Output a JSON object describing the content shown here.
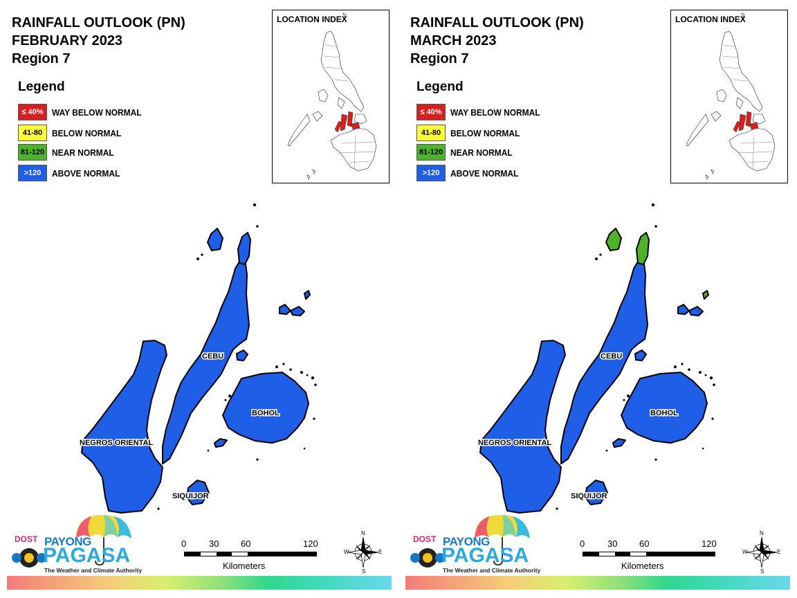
{
  "panels": [
    {
      "title_line1": "RAINFALL OUTLOOK (PN)",
      "title_line2": "FEBRUARY 2023",
      "title_line3": "Region 7",
      "fill_color": "#1f5ee6",
      "north_fill_color": "#1f5ee6"
    },
    {
      "title_line1": "RAINFALL OUTLOOK (PN)",
      "title_line2": "MARCH 2023",
      "title_line3": "Region 7",
      "fill_color": "#1f5ee6",
      "north_fill_color": "#4fb32a"
    }
  ],
  "legend": {
    "title": "Legend",
    "items": [
      {
        "range": "≤ 40%",
        "label": "WAY BELOW NORMAL",
        "color": "#d81e1e",
        "text_color": "#ffffff"
      },
      {
        "range": "41-80",
        "label": "BELOW NORMAL",
        "color": "#ffff33",
        "text_color": "#000000"
      },
      {
        "range": "81-120",
        "label": "NEAR NORMAL",
        "color": "#4fb32a",
        "text_color": "#000000"
      },
      {
        "range": ">120",
        "label": "ABOVE NORMAL",
        "color": "#1f5ee6",
        "text_color": "#ffffff"
      }
    ]
  },
  "location_index": {
    "label": "LOCATION INDEX",
    "highlight_color": "#d81e1e"
  },
  "places": {
    "cebu": "CEBU",
    "bohol": "BOHOL",
    "negros": "NEGROS ORIENTAL",
    "siquijor": "SIQUIJOR"
  },
  "logo": {
    "dost": "DOST",
    "payong": "PAYONG",
    "pagasa": "PAGASA",
    "tagline": "The Weather and Climate Authority"
  },
  "scalebar": {
    "ticks": [
      "0",
      "30",
      "60",
      "120"
    ],
    "unit": "Kilometers"
  },
  "compass": {
    "n": "N",
    "s": "S",
    "e": "E",
    "w": "W"
  }
}
